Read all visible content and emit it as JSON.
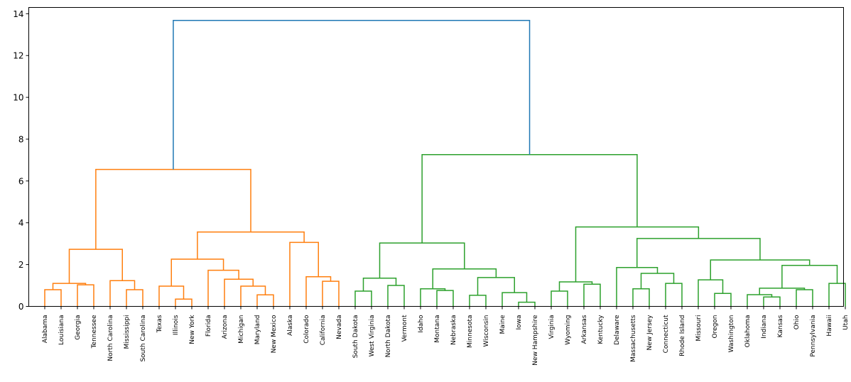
{
  "chart_data": {
    "type": "dendrogram",
    "title": "",
    "xlabel": "",
    "ylabel": "",
    "ylim": [
      0,
      14.3
    ],
    "yticks": [
      0,
      2,
      4,
      6,
      8,
      10,
      12,
      14
    ],
    "grid": false,
    "colors": {
      "root": "#1f77b4",
      "cluster_1": "#ff7f0e",
      "cluster_2": "#2ca02c"
    },
    "leaves": [
      "Alabama",
      "Louisiana",
      "Georgia",
      "Tennessee",
      "North Carolina",
      "Mississippi",
      "South Carolina",
      "Texas",
      "Illinois",
      "New York",
      "Florida",
      "Arizona",
      "Michigan",
      "Maryland",
      "New Mexico",
      "Alaska",
      "Colorado",
      "California",
      "Nevada",
      "South Dakota",
      "West Virginia",
      "North Dakota",
      "Vermont",
      "Idaho",
      "Montana",
      "Nebraska",
      "Minnesota",
      "Wisconsin",
      "Maine",
      "Iowa",
      "New Hampshire",
      "Virginia",
      "Wyoming",
      "Arkansas",
      "Kentucky",
      "Delaware",
      "Massachusetts",
      "New Jersey",
      "Connecticut",
      "Rhode Island",
      "Missouri",
      "Oregon",
      "Washington",
      "Oklahoma",
      "Indiana",
      "Kansas",
      "Ohio",
      "Pennsylvania",
      "Hawaii",
      "Utah"
    ],
    "merges": [
      {
        "id": "m1",
        "a": "Alabama",
        "b": "Louisiana",
        "height": 0.8,
        "color": "cluster_1"
      },
      {
        "id": "m2",
        "a": "Georgia",
        "b": "Tennessee",
        "height": 1.03,
        "color": "cluster_1"
      },
      {
        "id": "m3",
        "a": "m1",
        "b": "m2",
        "height": 1.1,
        "color": "cluster_1"
      },
      {
        "id": "m4",
        "a": "Mississippi",
        "b": "South Carolina",
        "height": 0.8,
        "color": "cluster_1"
      },
      {
        "id": "m5",
        "a": "North Carolina",
        "b": "m4",
        "height": 1.23,
        "color": "cluster_1"
      },
      {
        "id": "m6",
        "a": "m3",
        "b": "m5",
        "height": 2.73,
        "color": "cluster_1"
      },
      {
        "id": "m7",
        "a": "Illinois",
        "b": "New York",
        "height": 0.35,
        "color": "cluster_1"
      },
      {
        "id": "m8",
        "a": "Texas",
        "b": "m7",
        "height": 0.97,
        "color": "cluster_1"
      },
      {
        "id": "m9",
        "a": "Maryland",
        "b": "New Mexico",
        "height": 0.55,
        "color": "cluster_1"
      },
      {
        "id": "m10",
        "a": "Michigan",
        "b": "m9",
        "height": 0.97,
        "color": "cluster_1"
      },
      {
        "id": "m11",
        "a": "Arizona",
        "b": "m10",
        "height": 1.3,
        "color": "cluster_1"
      },
      {
        "id": "m12",
        "a": "Florida",
        "b": "m11",
        "height": 1.73,
        "color": "cluster_1"
      },
      {
        "id": "m13",
        "a": "m8",
        "b": "m12",
        "height": 2.26,
        "color": "cluster_1"
      },
      {
        "id": "m14",
        "a": "California",
        "b": "Nevada",
        "height": 1.2,
        "color": "cluster_1"
      },
      {
        "id": "m15",
        "a": "Colorado",
        "b": "m14",
        "height": 1.42,
        "color": "cluster_1"
      },
      {
        "id": "m16",
        "a": "Alaska",
        "b": "m15",
        "height": 3.06,
        "color": "cluster_1"
      },
      {
        "id": "m17",
        "a": "m13",
        "b": "m16",
        "height": 3.56,
        "color": "cluster_1"
      },
      {
        "id": "m18",
        "a": "m6",
        "b": "m17",
        "height": 6.55,
        "color": "cluster_1"
      },
      {
        "id": "m19",
        "a": "South Dakota",
        "b": "West Virginia",
        "height": 0.73,
        "color": "cluster_2"
      },
      {
        "id": "m20",
        "a": "North Dakota",
        "b": "Vermont",
        "height": 1.0,
        "color": "cluster_2"
      },
      {
        "id": "m21",
        "a": "m19",
        "b": "m20",
        "height": 1.35,
        "color": "cluster_2"
      },
      {
        "id": "m22",
        "a": "Montana",
        "b": "Nebraska",
        "height": 0.76,
        "color": "cluster_2"
      },
      {
        "id": "m23",
        "a": "Idaho",
        "b": "m22",
        "height": 0.84,
        "color": "cluster_2"
      },
      {
        "id": "m24",
        "a": "Minnesota",
        "b": "Wisconsin",
        "height": 0.53,
        "color": "cluster_2"
      },
      {
        "id": "m25",
        "a": "Iowa",
        "b": "New Hampshire",
        "height": 0.2,
        "color": "cluster_2"
      },
      {
        "id": "m26",
        "a": "Maine",
        "b": "m25",
        "height": 0.66,
        "color": "cluster_2"
      },
      {
        "id": "m27",
        "a": "m24",
        "b": "m26",
        "height": 1.38,
        "color": "cluster_2"
      },
      {
        "id": "m28",
        "a": "m23",
        "b": "m27",
        "height": 1.79,
        "color": "cluster_2"
      },
      {
        "id": "m29",
        "a": "m21",
        "b": "m28",
        "height": 3.03,
        "color": "cluster_2"
      },
      {
        "id": "m30",
        "a": "Virginia",
        "b": "Wyoming",
        "height": 0.73,
        "color": "cluster_2"
      },
      {
        "id": "m31",
        "a": "Arkansas",
        "b": "Kentucky",
        "height": 1.06,
        "color": "cluster_2"
      },
      {
        "id": "m32",
        "a": "m30",
        "b": "m31",
        "height": 1.17,
        "color": "cluster_2"
      },
      {
        "id": "m33",
        "a": "Massachusetts",
        "b": "New Jersey",
        "height": 0.84,
        "color": "cluster_2"
      },
      {
        "id": "m34",
        "a": "Connecticut",
        "b": "Rhode Island",
        "height": 1.1,
        "color": "cluster_2"
      },
      {
        "id": "m35",
        "a": "m33",
        "b": "m34",
        "height": 1.58,
        "color": "cluster_2"
      },
      {
        "id": "m36",
        "a": "Delaware",
        "b": "m35",
        "height": 1.86,
        "color": "cluster_2"
      },
      {
        "id": "m37",
        "a": "Oregon",
        "b": "Washington",
        "height": 0.62,
        "color": "cluster_2"
      },
      {
        "id": "m38",
        "a": "Missouri",
        "b": "m37",
        "height": 1.27,
        "color": "cluster_2"
      },
      {
        "id": "m39",
        "a": "Indiana",
        "b": "Kansas",
        "height": 0.45,
        "color": "cluster_2"
      },
      {
        "id": "m40",
        "a": "Oklahoma",
        "b": "m39",
        "height": 0.56,
        "color": "cluster_2"
      },
      {
        "id": "m41",
        "a": "Ohio",
        "b": "Pennsylvania",
        "height": 0.8,
        "color": "cluster_2"
      },
      {
        "id": "m42",
        "a": "m40",
        "b": "m41",
        "height": 0.87,
        "color": "cluster_2"
      },
      {
        "id": "m43",
        "a": "Hawaii",
        "b": "Utah",
        "height": 1.1,
        "color": "cluster_2"
      },
      {
        "id": "m44",
        "a": "m42",
        "b": "m43",
        "height": 1.96,
        "color": "cluster_2"
      },
      {
        "id": "m45",
        "a": "m38",
        "b": "m44",
        "height": 2.22,
        "color": "cluster_2"
      },
      {
        "id": "m46",
        "a": "m36",
        "b": "m45",
        "height": 3.25,
        "color": "cluster_2"
      },
      {
        "id": "m47",
        "a": "m32",
        "b": "m46",
        "height": 3.8,
        "color": "cluster_2"
      },
      {
        "id": "m48",
        "a": "m29",
        "b": "m47",
        "height": 7.26,
        "color": "cluster_2"
      },
      {
        "id": "m49",
        "a": "m18",
        "b": "m48",
        "height": 13.68,
        "color": "root"
      }
    ]
  }
}
